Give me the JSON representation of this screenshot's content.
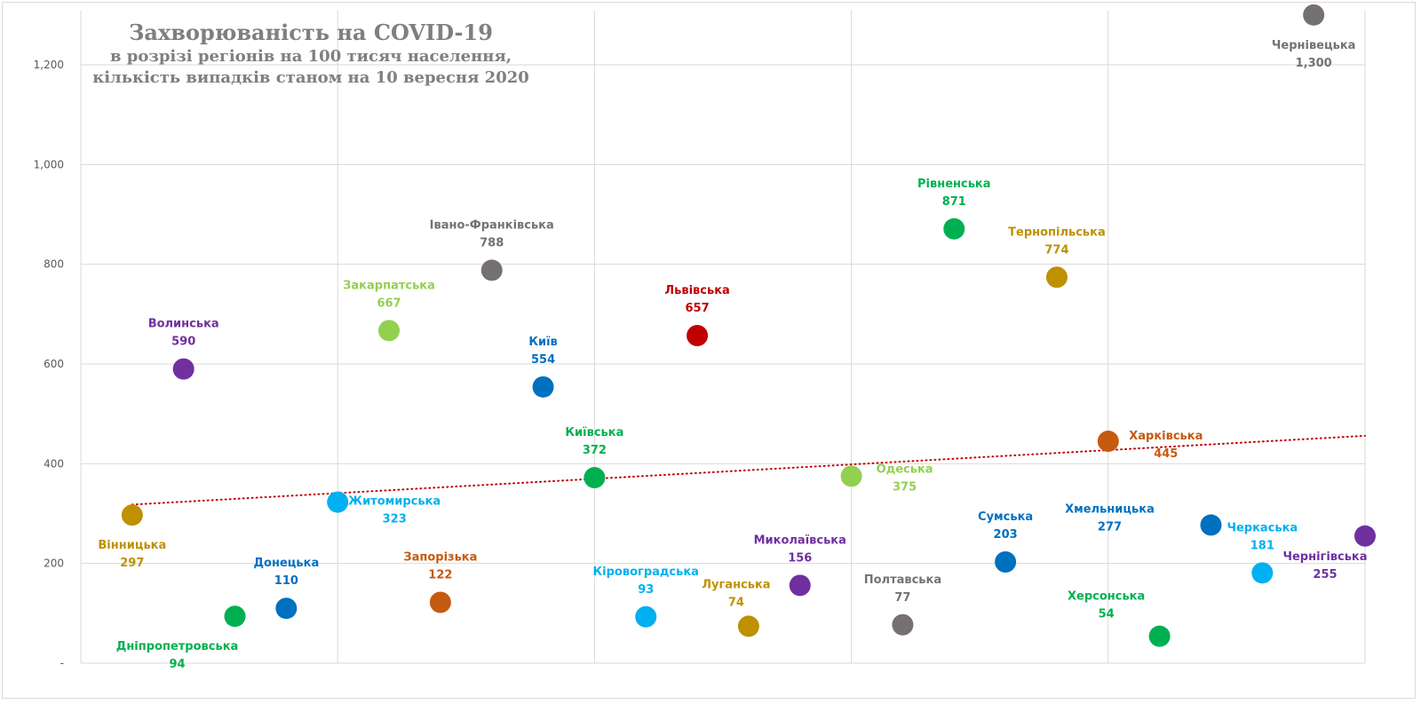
{
  "chart_data": {
    "type": "scatter",
    "title": "Захворюваність на COVID-19",
    "subtitle_lines": [
      "в розрізі регіонів на 100 тисяч населення,",
      "кількість випадків станом на 10 вересня 2020"
    ],
    "xlabel": "",
    "ylabel": "",
    "xlim": [
      0,
      25
    ],
    "ylim": [
      0,
      1300
    ],
    "yticks": [
      0,
      200,
      400,
      600,
      800,
      1000,
      1200
    ],
    "ytick_labels": [
      "-",
      "200",
      "400",
      "600",
      "800",
      "1,000",
      "1,200"
    ],
    "x_grid_every": 5,
    "grid": true,
    "legend": "none",
    "trendline": {
      "type": "linear",
      "style": "dotted",
      "color": "#c00000",
      "x": [
        1,
        25
      ],
      "y": [
        318,
        456
      ]
    },
    "points": [
      {
        "name": "Вінницька",
        "x": 1,
        "value": 297,
        "label": "297",
        "color": "#bf9000",
        "label_pos": "below"
      },
      {
        "name": "Волинська",
        "x": 2,
        "value": 590,
        "label": "590",
        "color": "#7030a0",
        "label_pos": "above"
      },
      {
        "name": "Дніпропетровська",
        "x": 3,
        "value": 94,
        "label": "94",
        "color": "#00b050",
        "label_pos": "below-left"
      },
      {
        "name": "Донецька",
        "x": 4,
        "value": 110,
        "label": "110",
        "color": "#0070c0",
        "label_pos": "above"
      },
      {
        "name": "Житомирська",
        "x": 5,
        "value": 323,
        "label": "323",
        "color": "#00b0f0",
        "label_pos": "right"
      },
      {
        "name": "Закарпатська",
        "x": 6,
        "value": 667,
        "label": "667",
        "color": "#92d050",
        "label_pos": "above"
      },
      {
        "name": "Запорізька",
        "x": 7,
        "value": 122,
        "label": "122",
        "color": "#c55a11",
        "label_pos": "above"
      },
      {
        "name": "Івано-Франківська",
        "x": 8,
        "value": 788,
        "label": "788",
        "color": "#767171",
        "label_pos": "above"
      },
      {
        "name": "Київ",
        "x": 9,
        "value": 554,
        "label": "554",
        "color": "#0070c0",
        "label_pos": "above"
      },
      {
        "name": "Київська",
        "x": 10,
        "value": 372,
        "label": "372",
        "color": "#00b050",
        "label_pos": "above"
      },
      {
        "name": "Кіровоградська",
        "x": 11,
        "value": 93,
        "label": "93",
        "color": "#00b0f0",
        "label_pos": "above"
      },
      {
        "name": "Львівська",
        "x": 12,
        "value": 657,
        "label": "657",
        "color": "#c00000",
        "label_pos": "above"
      },
      {
        "name": "Луганська",
        "x": 13,
        "value": 74,
        "label": "74",
        "color": "#bf9000",
        "label_pos": "above"
      },
      {
        "name": "Миколаївська",
        "x": 14,
        "value": 156,
        "label": "156",
        "color": "#7030a0",
        "label_pos": "above"
      },
      {
        "name": "Одеська",
        "x": 15,
        "value": 375,
        "label": "375",
        "color": "#92d050",
        "label_pos": "right"
      },
      {
        "name": "Полтавська",
        "x": 16,
        "value": 77,
        "label": "77",
        "color": "#767171",
        "label_pos": "above"
      },
      {
        "name": "Рівненська",
        "x": 17,
        "value": 871,
        "label": "871",
        "color": "#00b050",
        "label_pos": "above"
      },
      {
        "name": "Сумська",
        "x": 18,
        "value": 203,
        "label": "203",
        "color": "#0070c0",
        "label_pos": "above"
      },
      {
        "name": "Тернопільська",
        "x": 19,
        "value": 774,
        "label": "774",
        "color": "#bf9000",
        "label_pos": "above"
      },
      {
        "name": "Харківська",
        "x": 20,
        "value": 445,
        "label": "445",
        "color": "#c55a11",
        "label_pos": "right"
      },
      {
        "name": "Херсонська",
        "x": 21,
        "value": 54,
        "label": "54",
        "color": "#00b050",
        "label_pos": "above-left"
      },
      {
        "name": "Хмельницька",
        "x": 22,
        "value": 277,
        "label": "277",
        "color": "#0070c0",
        "label_pos": "left-up"
      },
      {
        "name": "Черкаська",
        "x": 23,
        "value": 181,
        "label": "181",
        "color": "#00b0f0",
        "label_pos": "above"
      },
      {
        "name": "Чернівецька",
        "x": 24,
        "value": 1300,
        "label": "1,300",
        "color": "#767171",
        "label_pos": "below"
      },
      {
        "name": "Чернігівська",
        "x": 25,
        "value": 255,
        "label": "255",
        "color": "#7030a0",
        "label_pos": "below-left"
      }
    ]
  }
}
